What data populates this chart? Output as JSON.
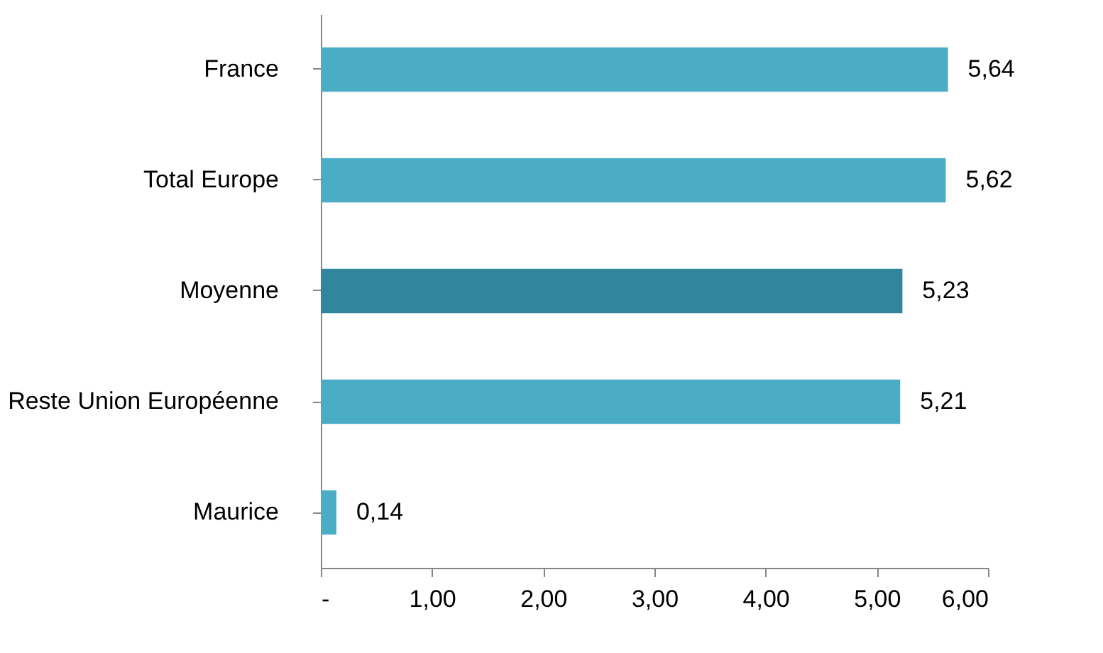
{
  "chart_data": {
    "type": "bar",
    "orientation": "horizontal",
    "categories": [
      "France",
      "Total Europe",
      "Moyenne",
      "Reste Union Européenne",
      "Maurice"
    ],
    "values": [
      5.64,
      5.62,
      5.23,
      5.21,
      0.14
    ],
    "value_labels": [
      "5,64",
      "5,62",
      "5,23",
      "5,21",
      "0,14"
    ],
    "colors": [
      "#4bacc6",
      "#4bacc6",
      "#31859c",
      "#4bacc6",
      "#4bacc6"
    ],
    "xlim": [
      0,
      6
    ],
    "xticks": [
      {
        "value": 0,
        "label": "-"
      },
      {
        "value": 1,
        "label": "1,00"
      },
      {
        "value": 2,
        "label": "2,00"
      },
      {
        "value": 3,
        "label": "3,00"
      },
      {
        "value": 4,
        "label": "4,00"
      },
      {
        "value": 5,
        "label": "5,00"
      },
      {
        "value": 6,
        "label": "6,00"
      }
    ],
    "grid": false
  }
}
